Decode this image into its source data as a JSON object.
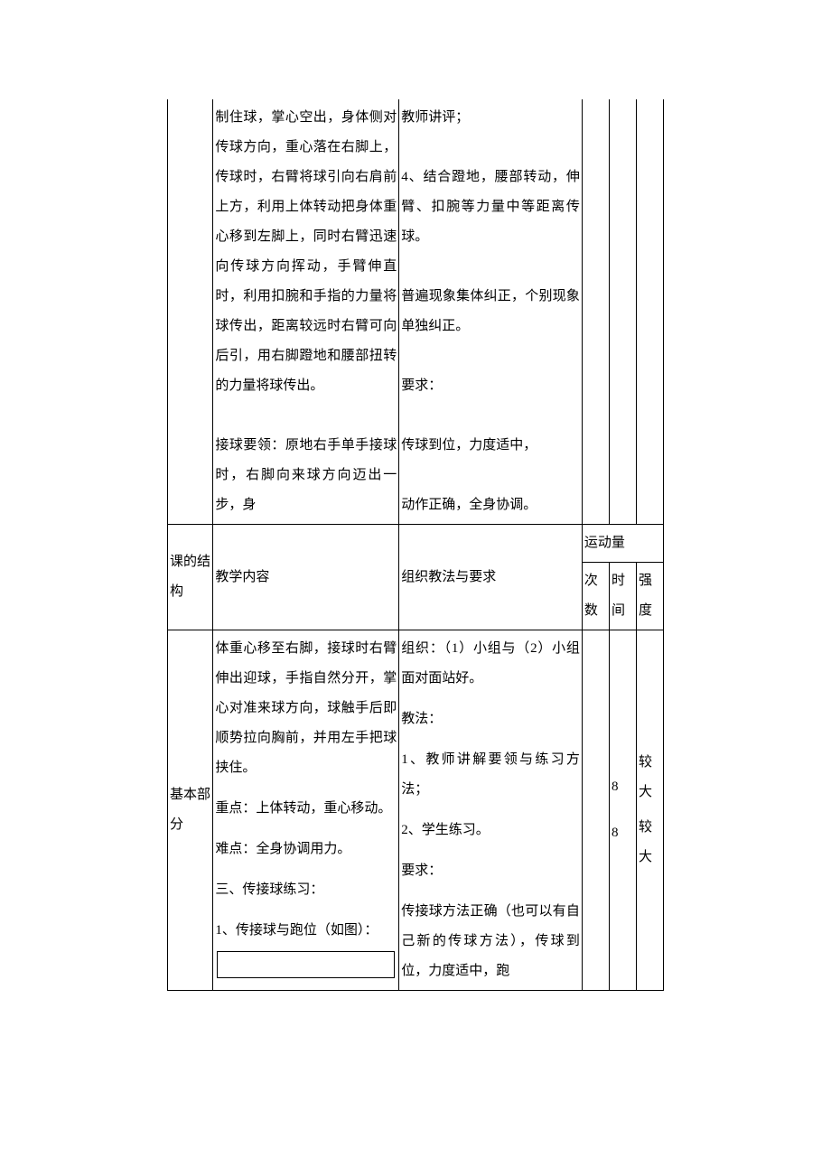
{
  "row1": {
    "col2": "制住球，掌心空出，身体侧对传球方向，重心落在右脚上，传球时，右臂将球引向右肩前上方，利用上体转动把身体重心移到左脚上，同时右臂迅速向传球方向挥动，手臂伸直时，利用扣腕和手指的力量将球传出，距离较远时右臂可向后引，用右脚蹬地和腰部扭转的力量将球传出。\n\n接球要领：原地右手单手接球时，右脚向来球方向迈出一步，身",
    "col3": "教师讲评；\n\n4、结合蹬地，腰部转动，伸臂、扣腕等力量中等距离传球。\n\n普遍现象集体纠正，个别现象单独纠正。\n\n要求：\n\n传球到位，力度适中，\n\n动作正确，全身协调。"
  },
  "header": {
    "col1": "课的结构",
    "col2": "教学内容",
    "col3": "组织教法与要求",
    "sport": "运动量",
    "col4": "次数",
    "col5": "时间",
    "col6": "强度"
  },
  "row3": {
    "col1": "基本部分",
    "col2_p1": "体重心移至右脚，接球时右臂伸出迎球，手指自然分开，掌心对准来球方向，球触手后即顺势拉向胸前，并用左手把球挟住。",
    "col2_p2": "重点：上体转动，重心移动。",
    "col2_p3": "难点：全身协调用力。",
    "col2_p4": "三、传接球练习：",
    "col2_p5": "1、传接球与跑位（如图）：",
    "col3_p1": "组织：（1）小组与（2）小组面对面站好。",
    "col3_p2": "教法：",
    "col3_p3": "1、教师讲解要领与练习方法；",
    "col3_p4": "2、学生练习。",
    "col3_p5": "要求：",
    "col3_p6": "传接球方法正确（也可以有自己新的传球方法），传球到位，力度适中，跑",
    "times1": "8",
    "times2": "8",
    "intensity1": "较大",
    "intensity2": "较大"
  }
}
